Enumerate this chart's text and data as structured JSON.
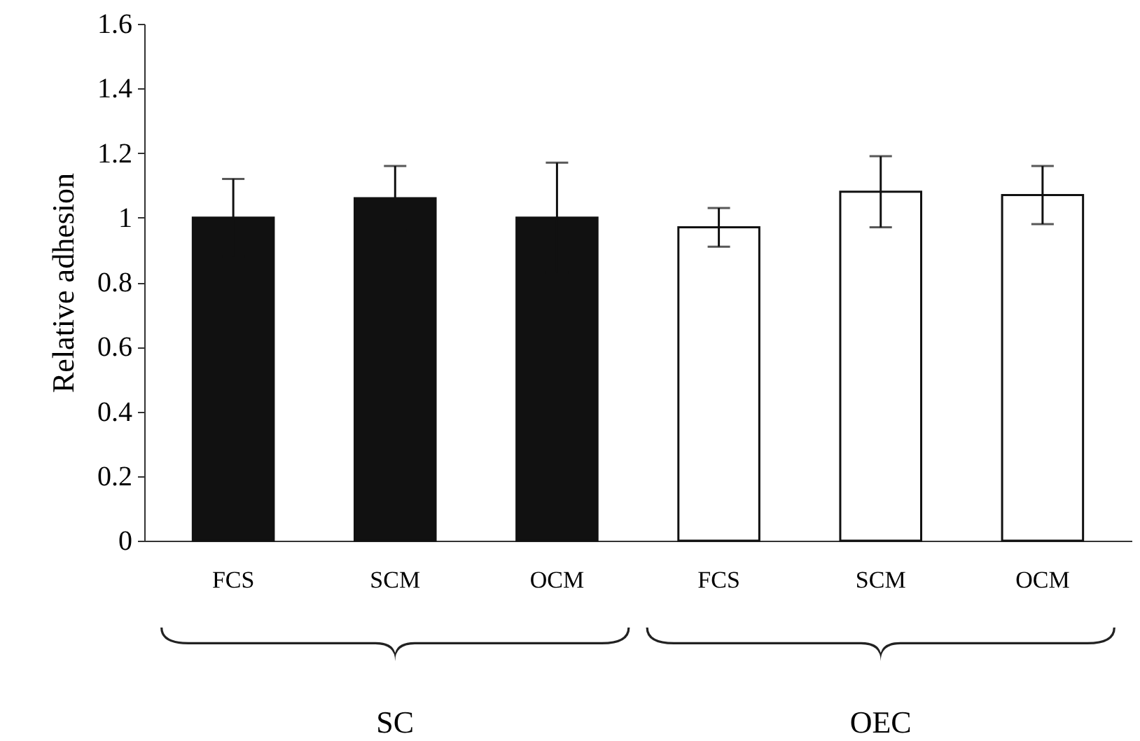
{
  "chart_data": {
    "type": "bar",
    "ylabel": "Relative adhesion",
    "categories": [
      "FCS",
      "SCM",
      "OCM",
      "FCS",
      "SCM",
      "OCM"
    ],
    "values": [
      1.0,
      1.06,
      1.0,
      0.97,
      1.08,
      1.07
    ],
    "errors": [
      0.12,
      0.1,
      0.17,
      0.06,
      0.11,
      0.09
    ],
    "colors": [
      "#111111",
      "#111111",
      "#111111",
      "#ffffff",
      "#ffffff",
      "#ffffff"
    ],
    "ylim": [
      0,
      1.6
    ],
    "yticks": [
      0,
      0.2,
      0.4,
      0.6,
      0.8,
      1,
      1.2,
      1.4,
      1.6
    ],
    "annotations": [
      "SC",
      "OEC"
    ]
  }
}
